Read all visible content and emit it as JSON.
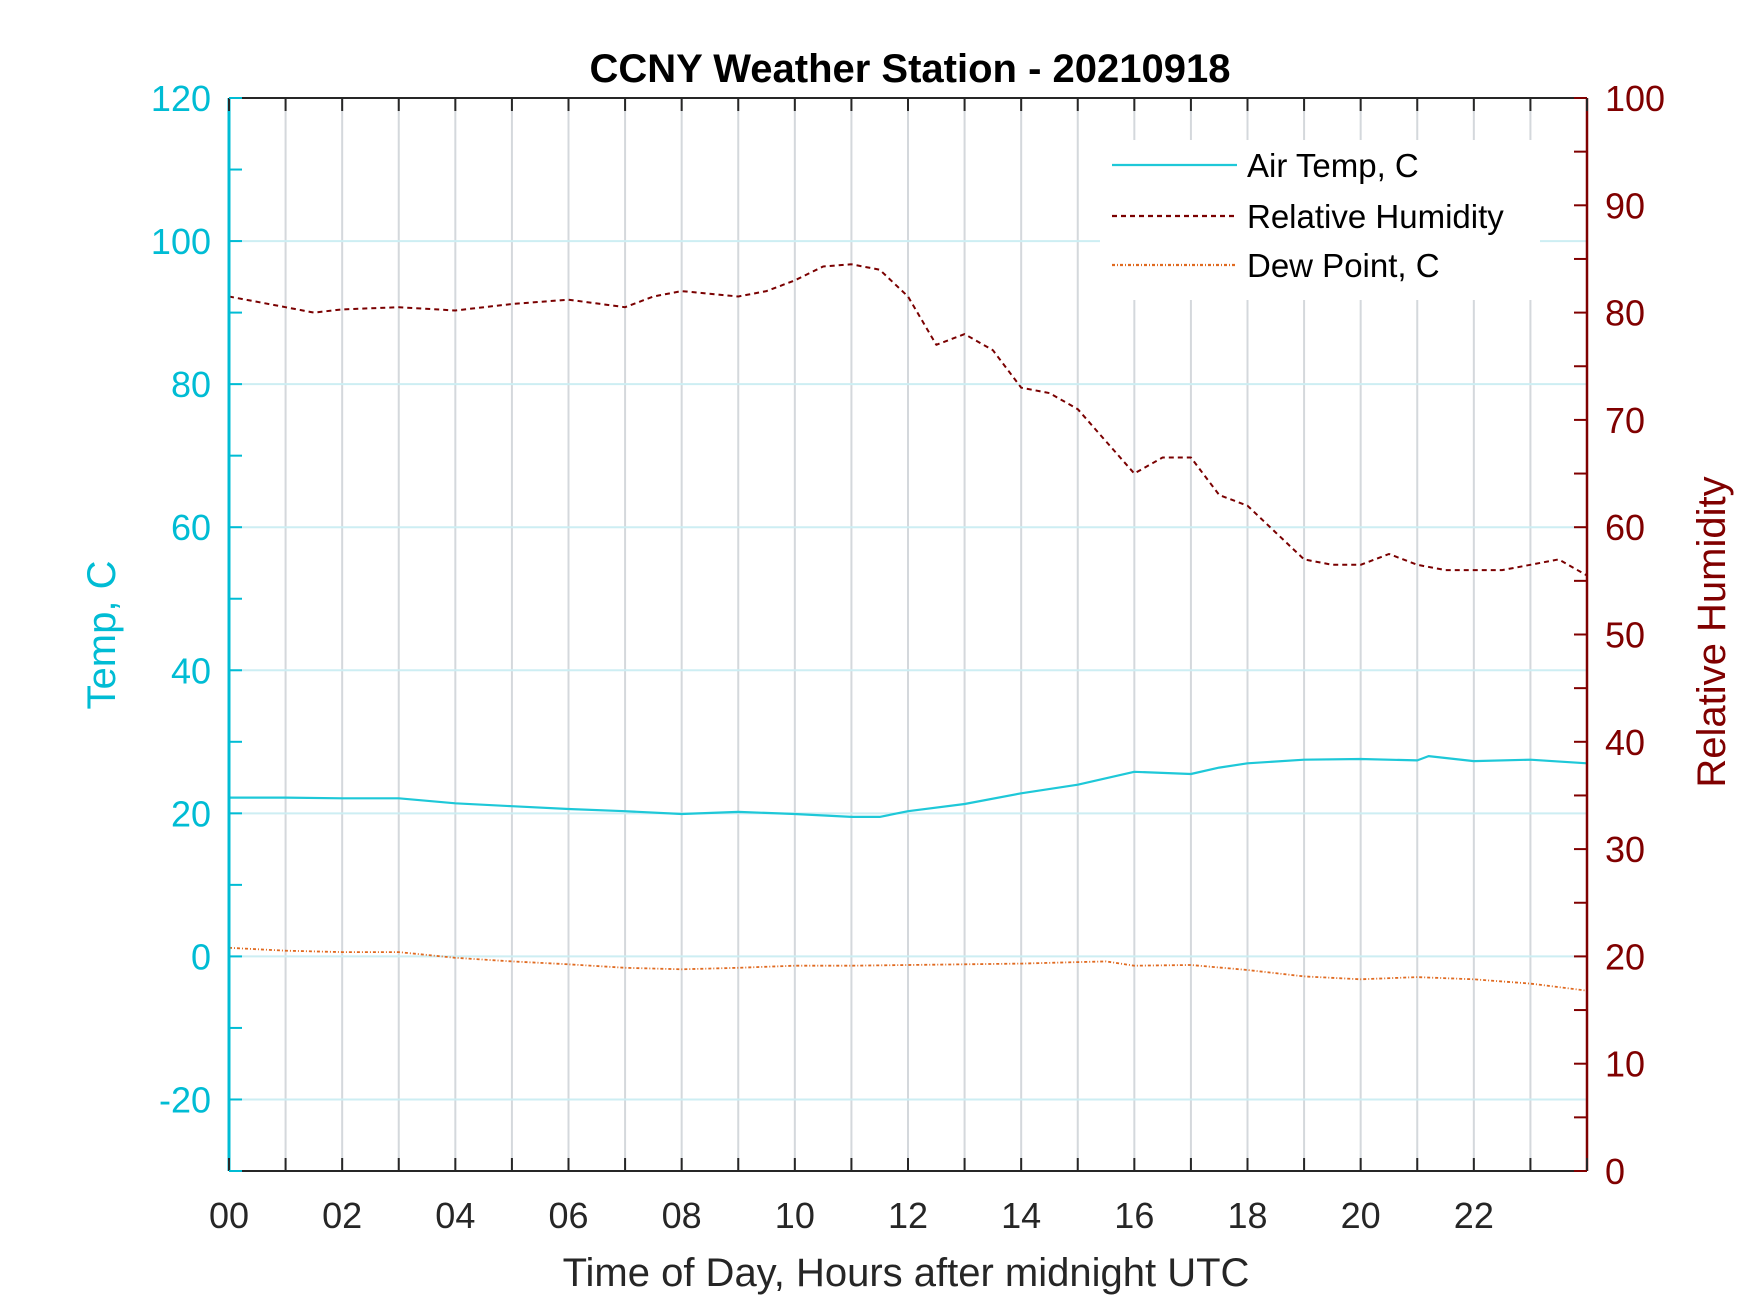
{
  "chart_data": {
    "type": "line",
    "title": "CCNY Weather Station - 20210918",
    "xlabel": "Time of Day, Hours after midnight UTC",
    "ylabel_left": "Temp, C",
    "ylabel_right": "Relative Humidity",
    "xlim": [
      0,
      24
    ],
    "ylim_left": [
      -30,
      120
    ],
    "ylim_right": [
      0,
      100
    ],
    "x_ticks": [
      0,
      2,
      4,
      6,
      8,
      10,
      12,
      14,
      16,
      18,
      20,
      22
    ],
    "x_tick_labels": [
      "00",
      "02",
      "04",
      "06",
      "08",
      "10",
      "12",
      "14",
      "16",
      "18",
      "20",
      "22"
    ],
    "y_left_ticks": [
      -20,
      0,
      20,
      40,
      60,
      80,
      100,
      120
    ],
    "y_left_tick_labels": [
      "-20",
      "0",
      "20",
      "40",
      "60",
      "80",
      "100",
      "120"
    ],
    "y_right_ticks": [
      0,
      10,
      20,
      30,
      40,
      50,
      60,
      70,
      80,
      90,
      100
    ],
    "y_right_tick_labels": [
      "0",
      "10",
      "20",
      "30",
      "40",
      "50",
      "60",
      "70",
      "80",
      "90",
      "100"
    ],
    "grid": true,
    "legend_position": "top-right",
    "colors": {
      "left_axis": "#00bcd4",
      "right_axis": "#800000",
      "air_temp": "#1ec8d8",
      "humidity": "#7a0000",
      "dew_point": "#e06a20",
      "grid_vertical": "#d4d8dc",
      "grid_horizontal": "#cdeef3"
    },
    "series": [
      {
        "name": "Air Temp, C",
        "axis": "left",
        "style": "solid",
        "x": [
          0,
          1,
          2,
          3,
          4,
          5,
          6,
          7,
          8,
          9,
          10,
          11,
          11.5,
          12,
          13,
          14,
          15,
          16,
          17,
          17.5,
          18,
          19,
          20,
          21,
          21.2,
          22,
          23,
          24
        ],
        "y": [
          22.2,
          22.2,
          22.1,
          22.1,
          21.4,
          21.0,
          20.6,
          20.3,
          19.9,
          20.2,
          19.9,
          19.5,
          19.5,
          20.3,
          21.3,
          22.8,
          24.0,
          25.8,
          25.5,
          26.4,
          27.0,
          27.5,
          27.6,
          27.4,
          28.0,
          27.3,
          27.5,
          27.0
        ]
      },
      {
        "name": "Relative Humidity",
        "axis": "right",
        "style": "dashed",
        "x": [
          0,
          1,
          1.5,
          2,
          3,
          4,
          5,
          6,
          7,
          7.5,
          8,
          9,
          9.5,
          10,
          10.5,
          11,
          11.5,
          12,
          12.5,
          13,
          13.5,
          14,
          14.5,
          15,
          15.5,
          16,
          16.5,
          17,
          17.5,
          18,
          18.5,
          19,
          19.5,
          20,
          20.5,
          21,
          21.5,
          22,
          22.5,
          23,
          23.5,
          24
        ],
        "y": [
          81.5,
          80.5,
          80.0,
          80.3,
          80.5,
          80.2,
          80.8,
          81.2,
          80.5,
          81.5,
          82.0,
          81.5,
          82.0,
          83.0,
          84.3,
          84.5,
          84.0,
          81.5,
          77.0,
          78.0,
          76.5,
          73.0,
          72.5,
          71.0,
          68.0,
          65.0,
          66.5,
          66.5,
          63.0,
          62.0,
          59.5,
          57.0,
          56.5,
          56.5,
          57.5,
          56.5,
          56.0,
          56.0,
          56.0,
          56.5,
          57.0,
          55.5
        ]
      },
      {
        "name": "Dew Point, C",
        "axis": "left",
        "style": "dashdot",
        "x": [
          0,
          1,
          2,
          3,
          4,
          5,
          6,
          7,
          8,
          9,
          10,
          11,
          12,
          13,
          14,
          15,
          15.5,
          16,
          17,
          18,
          19,
          20,
          21,
          22,
          23,
          24
        ],
        "y": [
          1.2,
          0.8,
          0.6,
          0.6,
          -0.2,
          -0.7,
          -1.1,
          -1.6,
          -1.8,
          -1.6,
          -1.3,
          -1.3,
          -1.2,
          -1.1,
          -1.0,
          -0.8,
          -0.7,
          -1.3,
          -1.2,
          -1.9,
          -2.8,
          -3.2,
          -2.9,
          -3.2,
          -3.8,
          -4.8
        ]
      }
    ]
  }
}
